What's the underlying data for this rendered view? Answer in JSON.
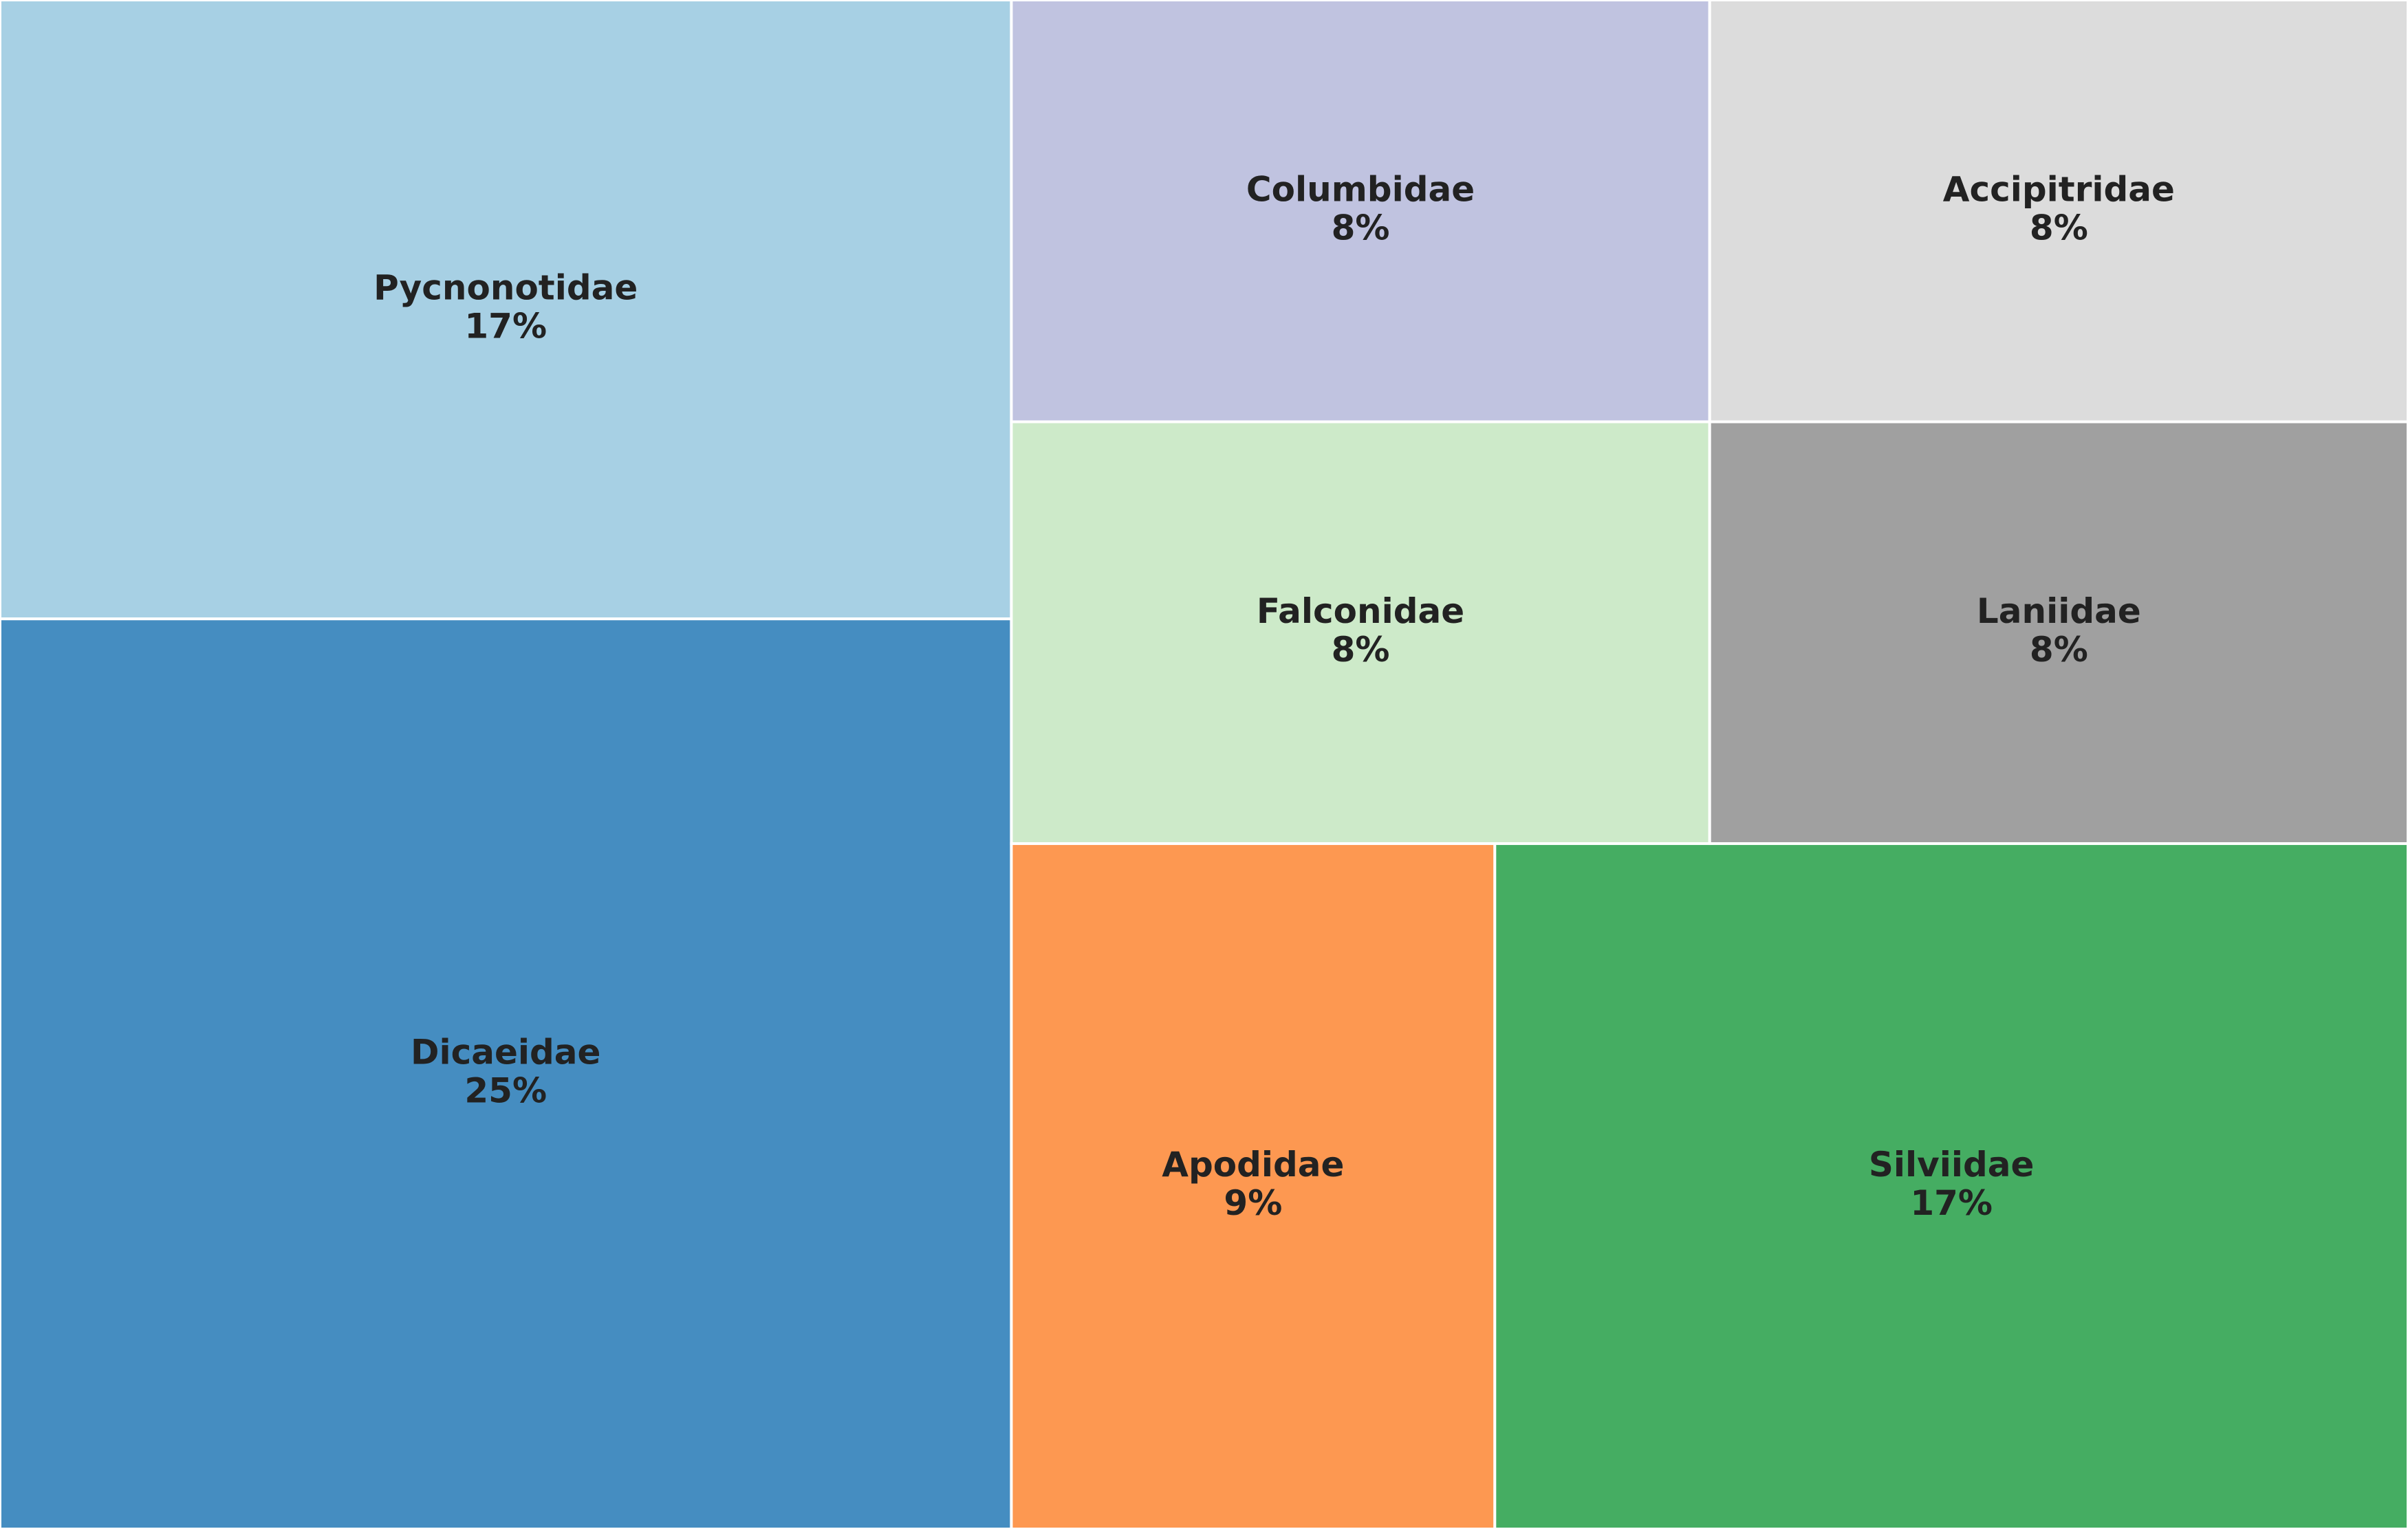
{
  "chart_data": {
    "type": "treemap",
    "categories": [
      "Pycnonotidae",
      "Dicaeidae",
      "Apodidae",
      "Silviidae",
      "Columbidae",
      "Falconidae",
      "Laniidae",
      "Accipitridae"
    ],
    "values": [
      17,
      25,
      9,
      17,
      8,
      8,
      8,
      8
    ],
    "value_labels": [
      "17%",
      "25%",
      "9%",
      "17%",
      "8%",
      "8%",
      "8%",
      "8%"
    ],
    "colors": [
      "#a7d0e4",
      "#458dc1",
      "#fd9851",
      "#45ad62",
      "#c0c3e0",
      "#cdeac9",
      "#a0a0a0",
      "#dcdcdc"
    ]
  }
}
